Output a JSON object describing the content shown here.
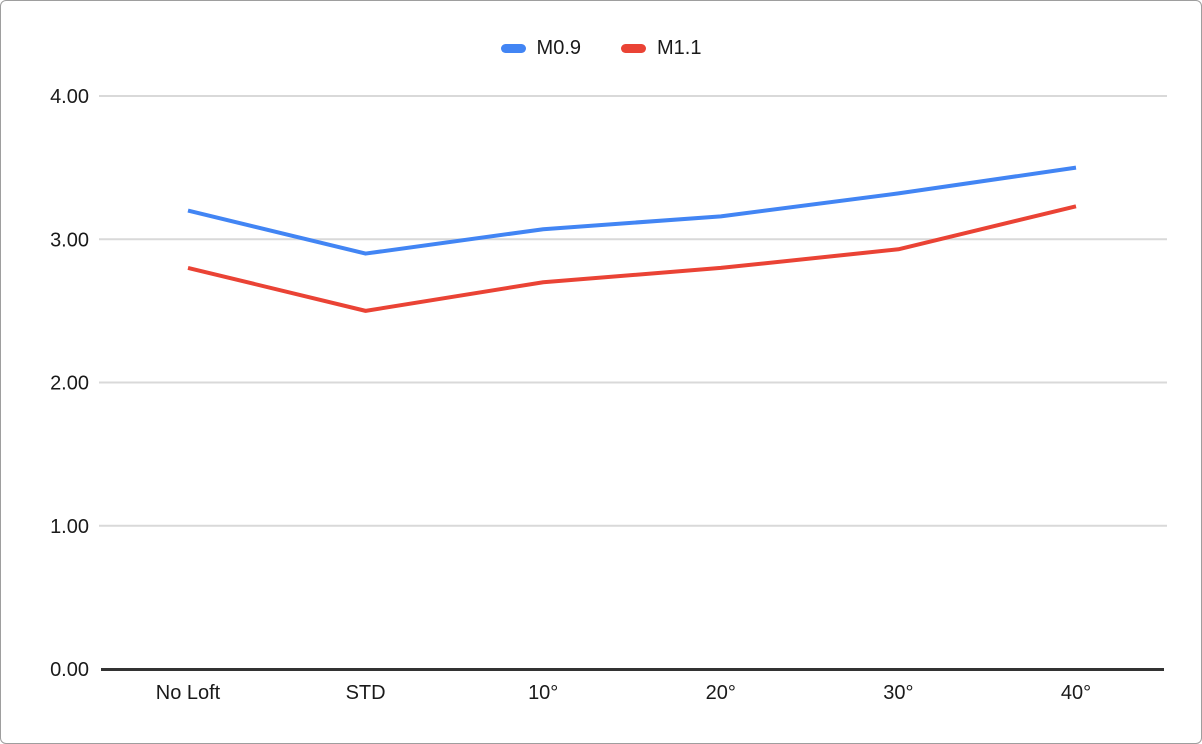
{
  "chart": {
    "background_color": "#ffffff",
    "border_color": "#9e9e9e"
  },
  "chart_data": {
    "type": "line",
    "title": "",
    "categories": [
      "No Loft",
      "STD",
      "10°",
      "20°",
      "30°",
      "40°"
    ],
    "series": [
      {
        "name": "M0.9",
        "color": "#4285f4",
        "values": [
          3.2,
          2.9,
          3.07,
          3.16,
          3.32,
          3.5
        ]
      },
      {
        "name": "M1.1",
        "color": "#ea4335",
        "values": [
          2.8,
          2.5,
          2.7,
          2.8,
          2.93,
          3.23
        ]
      }
    ],
    "y_axis": {
      "min": 0,
      "max": 4,
      "tick_step": 1,
      "tick_labels": [
        "0.00",
        "1.00",
        "2.00",
        "3.00",
        "4.00"
      ]
    },
    "x_axis": {
      "label": ""
    },
    "legend_position": "top",
    "grid": true,
    "gridline_color": "#d9d9d9",
    "axis_line_color": "#333333",
    "label_color": "#1a1a1a",
    "line_width": 4
  }
}
